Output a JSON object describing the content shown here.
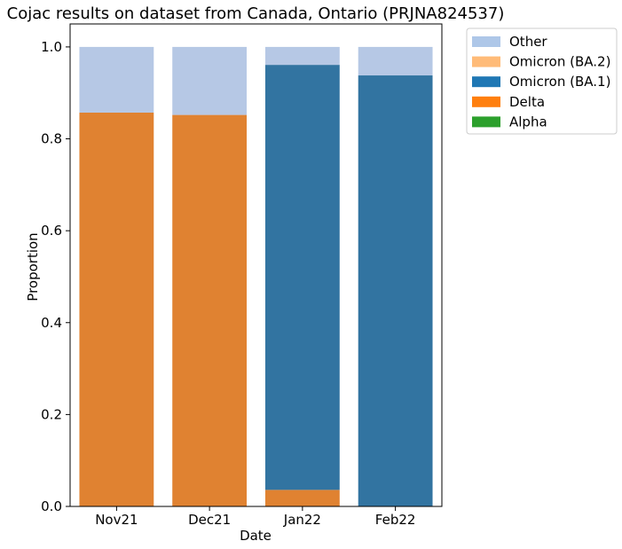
{
  "chart_data": {
    "type": "bar",
    "stacked": true,
    "title": "Cojac results on dataset from Canada, Ontario (PRJNA824537)",
    "xlabel": "Date",
    "ylabel": "Proportion",
    "ylim": [
      0,
      1.05
    ],
    "yticks": [
      "0.0",
      "0.2",
      "0.4",
      "0.6",
      "0.8",
      "1.0"
    ],
    "categories": [
      "Nov21",
      "Dec21",
      "Jan22",
      "Feb22"
    ],
    "series": [
      {
        "name": "Alpha",
        "color": "#2ca02c",
        "values": [
          0,
          0,
          0,
          0
        ]
      },
      {
        "name": "Delta",
        "color": "#e08231",
        "values": [
          0.857,
          0.852,
          0.036,
          0
        ]
      },
      {
        "name": "Omicron (BA.1)",
        "color": "#3274a1",
        "values": [
          0,
          0,
          0.925,
          0.938
        ]
      },
      {
        "name": "Omicron (BA.2)",
        "color": "#ffbb78",
        "values": [
          0,
          0,
          0,
          0
        ]
      },
      {
        "name": "Other",
        "color": "#b6c8e5",
        "values": [
          0.143,
          0.148,
          0.039,
          0.062
        ]
      }
    ],
    "legend": {
      "placement": "outside-top-right",
      "entries": [
        {
          "label": "Other",
          "color": "#aec7e8"
        },
        {
          "label": "Omicron (BA.2)",
          "color": "#ffbb78"
        },
        {
          "label": "Omicron (BA.1)",
          "color": "#1f77b4"
        },
        {
          "label": "Delta",
          "color": "#ff7f0e"
        },
        {
          "label": "Alpha",
          "color": "#2ca02c"
        }
      ]
    },
    "grid": false
  }
}
